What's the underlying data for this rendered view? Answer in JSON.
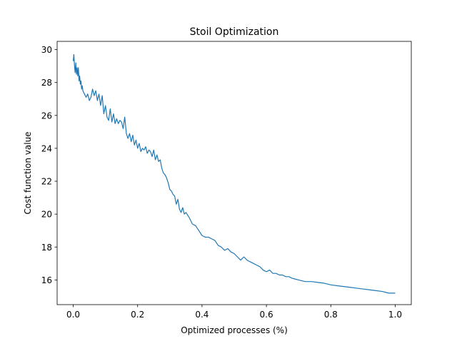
{
  "chart_data": {
    "type": "line",
    "title": "Stoil Optimization",
    "xlabel": "Optimized processes (%)",
    "ylabel": "Cost function value",
    "xlim": [
      -0.05,
      1.05
    ],
    "ylim": [
      14.5,
      30.5
    ],
    "xticks": [
      0.0,
      0.2,
      0.4,
      0.6,
      0.8,
      1.0
    ],
    "xtick_labels": [
      "0.0",
      "0.2",
      "0.4",
      "0.6",
      "0.8",
      "1.0"
    ],
    "yticks": [
      16,
      18,
      20,
      22,
      24,
      26,
      28,
      30
    ],
    "ytick_labels": [
      "16",
      "18",
      "20",
      "22",
      "24",
      "26",
      "28",
      "30"
    ],
    "grid": false,
    "series": [
      {
        "color": "#1f77b4",
        "x": [
          0.0,
          0.002,
          0.004,
          0.006,
          0.008,
          0.01,
          0.012,
          0.014,
          0.016,
          0.018,
          0.02,
          0.022,
          0.024,
          0.026,
          0.028,
          0.03,
          0.035,
          0.04,
          0.045,
          0.05,
          0.055,
          0.06,
          0.065,
          0.07,
          0.075,
          0.08,
          0.085,
          0.09,
          0.095,
          0.1,
          0.105,
          0.11,
          0.115,
          0.12,
          0.125,
          0.13,
          0.135,
          0.14,
          0.145,
          0.15,
          0.155,
          0.16,
          0.165,
          0.17,
          0.175,
          0.18,
          0.185,
          0.19,
          0.195,
          0.2,
          0.205,
          0.21,
          0.215,
          0.22,
          0.225,
          0.23,
          0.235,
          0.24,
          0.245,
          0.25,
          0.255,
          0.26,
          0.265,
          0.27,
          0.275,
          0.28,
          0.285,
          0.29,
          0.295,
          0.3,
          0.305,
          0.31,
          0.315,
          0.32,
          0.325,
          0.33,
          0.335,
          0.34,
          0.345,
          0.35,
          0.36,
          0.37,
          0.38,
          0.39,
          0.4,
          0.41,
          0.42,
          0.43,
          0.44,
          0.45,
          0.46,
          0.47,
          0.48,
          0.49,
          0.5,
          0.51,
          0.52,
          0.53,
          0.54,
          0.55,
          0.56,
          0.57,
          0.58,
          0.59,
          0.6,
          0.61,
          0.62,
          0.63,
          0.64,
          0.65,
          0.66,
          0.67,
          0.68,
          0.69,
          0.7,
          0.72,
          0.74,
          0.76,
          0.78,
          0.8,
          0.82,
          0.84,
          0.86,
          0.88,
          0.9,
          0.92,
          0.94,
          0.96,
          0.98,
          1.0
        ],
        "y": [
          29.3,
          29.7,
          29.0,
          28.6,
          29.2,
          28.5,
          28.9,
          28.4,
          28.9,
          28.1,
          28.4,
          27.9,
          28.1,
          27.6,
          27.8,
          27.5,
          27.3,
          27.1,
          27.3,
          26.9,
          27.1,
          27.6,
          27.2,
          27.5,
          26.9,
          27.3,
          26.6,
          27.2,
          26.1,
          26.6,
          25.9,
          25.7,
          26.4,
          25.6,
          26.1,
          25.5,
          25.8,
          25.5,
          25.7,
          25.6,
          25.2,
          25.9,
          24.9,
          24.6,
          24.9,
          24.4,
          24.8,
          24.2,
          24.5,
          24.0,
          24.3,
          23.8,
          24.0,
          23.9,
          24.1,
          23.7,
          23.9,
          23.8,
          23.5,
          23.9,
          23.3,
          23.6,
          23.2,
          23.3,
          22.8,
          22.5,
          22.4,
          22.2,
          21.9,
          21.5,
          21.4,
          21.2,
          21.1,
          20.6,
          20.9,
          20.3,
          20.1,
          20.4,
          20.0,
          20.1,
          19.8,
          19.4,
          19.3,
          19.0,
          18.7,
          18.6,
          18.6,
          18.5,
          18.4,
          18.1,
          18.0,
          17.8,
          17.9,
          17.7,
          17.6,
          17.4,
          17.2,
          17.4,
          17.2,
          17.1,
          17.0,
          16.9,
          16.8,
          16.6,
          16.5,
          16.6,
          16.4,
          16.4,
          16.3,
          16.3,
          16.2,
          16.2,
          16.1,
          16.05,
          16.0,
          15.9,
          15.9,
          15.85,
          15.8,
          15.7,
          15.65,
          15.6,
          15.55,
          15.5,
          15.45,
          15.4,
          15.35,
          15.3,
          15.2,
          15.2
        ]
      }
    ]
  }
}
